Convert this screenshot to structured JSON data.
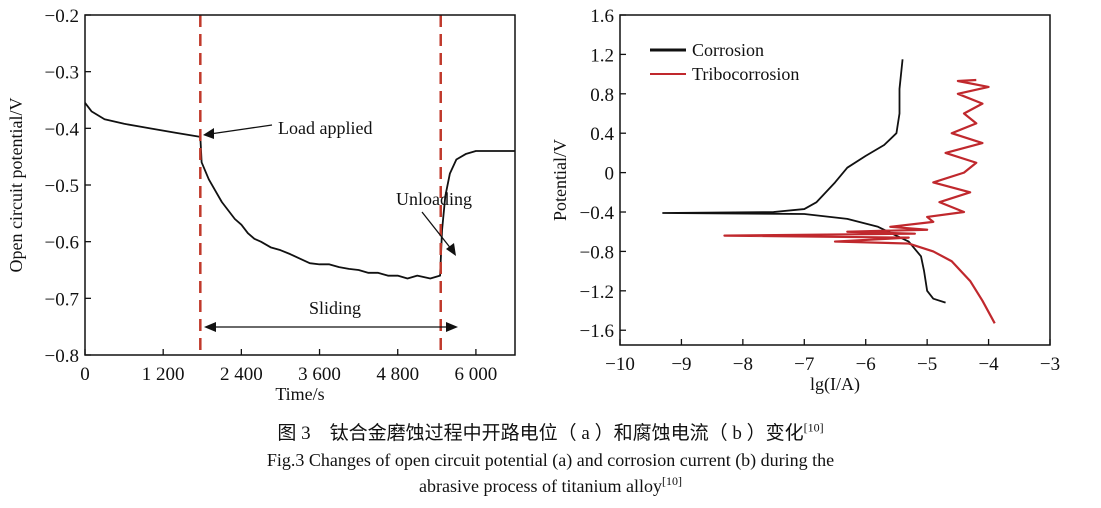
{
  "chart_data": [
    {
      "type": "line",
      "panel": "a",
      "xlabel": "Time/s",
      "ylabel": "Open circuit potential/V",
      "xlim": [
        0,
        6600
      ],
      "ylim": [
        -0.8,
        -0.2
      ],
      "xticks": [
        0,
        1200,
        2400,
        3600,
        4800,
        6000
      ],
      "xtick_labels": [
        "0",
        "1 200",
        "2 400",
        "3 600",
        "4 800",
        "6 000"
      ],
      "yticks": [
        -0.2,
        -0.3,
        -0.4,
        -0.5,
        -0.6,
        -0.7,
        -0.8
      ],
      "ytick_labels": [
        "−0.2",
        "−0.3",
        "−0.4",
        "−0.5",
        "−0.6",
        "−0.7",
        "−0.8"
      ],
      "grid": false,
      "series": [
        {
          "color": "#111111",
          "points": [
            [
              0,
              -0.355
            ],
            [
              100,
              -0.37
            ],
            [
              300,
              -0.384
            ],
            [
              600,
              -0.392
            ],
            [
              1000,
              -0.4
            ],
            [
              1400,
              -0.408
            ],
            [
              1770,
              -0.415
            ],
            [
              1790,
              -0.46
            ],
            [
              1900,
              -0.49
            ],
            [
              2000,
              -0.51
            ],
            [
              2100,
              -0.53
            ],
            [
              2200,
              -0.545
            ],
            [
              2300,
              -0.56
            ],
            [
              2400,
              -0.57
            ],
            [
              2500,
              -0.585
            ],
            [
              2600,
              -0.595
            ],
            [
              2700,
              -0.6
            ],
            [
              2850,
              -0.61
            ],
            [
              3000,
              -0.615
            ],
            [
              3150,
              -0.622
            ],
            [
              3300,
              -0.63
            ],
            [
              3450,
              -0.638
            ],
            [
              3600,
              -0.64
            ],
            [
              3750,
              -0.64
            ],
            [
              3900,
              -0.645
            ],
            [
              4050,
              -0.648
            ],
            [
              4200,
              -0.65
            ],
            [
              4350,
              -0.655
            ],
            [
              4500,
              -0.655
            ],
            [
              4650,
              -0.66
            ],
            [
              4800,
              -0.66
            ],
            [
              4950,
              -0.665
            ],
            [
              5100,
              -0.66
            ],
            [
              5300,
              -0.665
            ],
            [
              5450,
              -0.66
            ],
            [
              5480,
              -0.58
            ],
            [
              5530,
              -0.52
            ],
            [
              5600,
              -0.48
            ],
            [
              5700,
              -0.455
            ],
            [
              5850,
              -0.445
            ],
            [
              6000,
              -0.44
            ],
            [
              6600,
              -0.44
            ]
          ]
        }
      ],
      "vlines": [
        {
          "x": 1770,
          "color": "#c0392b",
          "style": "dashed"
        },
        {
          "x": 5460,
          "color": "#c0392b",
          "style": "dashed"
        }
      ],
      "annotations": {
        "load": "Load applied",
        "unload": "Unloading",
        "sliding": "Sliding"
      }
    },
    {
      "type": "line",
      "panel": "b",
      "xlabel": "lg(I/A)",
      "ylabel": "Potential/V",
      "xlim": [
        -10,
        -3
      ],
      "ylim": [
        -1.75,
        1.6
      ],
      "xticks": [
        -10,
        -9,
        -8,
        -7,
        -6,
        -5,
        -4,
        -3
      ],
      "xtick_labels": [
        "−10",
        "−9",
        "−8",
        "−7",
        "−6",
        "−5",
        "−4",
        "−3"
      ],
      "yticks": [
        1.6,
        1.2,
        0.8,
        0.4,
        0,
        -0.4,
        -0.8,
        -1.2,
        -1.6
      ],
      "ytick_labels": [
        "1.6",
        "1.2",
        "0.8",
        "0.4",
        "0",
        "−0.4",
        "−0.8",
        "−1.2",
        "−1.6"
      ],
      "grid": false,
      "legend": "top-left",
      "series": [
        {
          "name": "Corrosion",
          "color": "#111111",
          "points": [
            [
              -5.4,
              1.15
            ],
            [
              -5.45,
              0.85
            ],
            [
              -5.45,
              0.6
            ],
            [
              -5.5,
              0.4
            ],
            [
              -5.7,
              0.28
            ],
            [
              -6.0,
              0.17
            ],
            [
              -6.3,
              0.05
            ],
            [
              -6.5,
              -0.1
            ],
            [
              -6.8,
              -0.3
            ],
            [
              -7.0,
              -0.37
            ],
            [
              -7.5,
              -0.4
            ],
            [
              -9.3,
              -0.41
            ],
            [
              -7.0,
              -0.42
            ],
            [
              -6.3,
              -0.47
            ],
            [
              -5.8,
              -0.55
            ],
            [
              -5.3,
              -0.7
            ],
            [
              -5.1,
              -0.85
            ],
            [
              -5.05,
              -1.0
            ],
            [
              -5.0,
              -1.2
            ],
            [
              -4.9,
              -1.28
            ],
            [
              -4.7,
              -1.32
            ]
          ]
        },
        {
          "name": "Tribocorrosion",
          "color": "#c0282d",
          "points": [
            [
              -4.2,
              0.94
            ],
            [
              -4.5,
              0.93
            ],
            [
              -4.0,
              0.87
            ],
            [
              -4.5,
              0.8
            ],
            [
              -4.1,
              0.7
            ],
            [
              -4.4,
              0.6
            ],
            [
              -4.2,
              0.5
            ],
            [
              -4.6,
              0.4
            ],
            [
              -4.1,
              0.3
            ],
            [
              -4.7,
              0.2
            ],
            [
              -4.2,
              0.1
            ],
            [
              -4.4,
              0
            ],
            [
              -4.9,
              -0.1
            ],
            [
              -4.3,
              -0.2
            ],
            [
              -4.8,
              -0.3
            ],
            [
              -4.4,
              -0.4
            ],
            [
              -5.0,
              -0.45
            ],
            [
              -4.9,
              -0.5
            ],
            [
              -5.6,
              -0.55
            ],
            [
              -5.0,
              -0.58
            ],
            [
              -6.3,
              -0.6
            ],
            [
              -5.2,
              -0.62
            ],
            [
              -8.3,
              -0.64
            ],
            [
              -5.3,
              -0.66
            ],
            [
              -6.5,
              -0.7
            ],
            [
              -5.3,
              -0.72
            ],
            [
              -4.9,
              -0.8
            ],
            [
              -4.6,
              -0.9
            ],
            [
              -4.3,
              -1.1
            ],
            [
              -4.1,
              -1.3
            ],
            [
              -3.9,
              -1.53
            ]
          ]
        }
      ]
    }
  ],
  "caption": {
    "zh": "图 3　钛合金磨蚀过程中开路电位（ a ）和腐蚀电流（ b ）变化",
    "ref": "[10]",
    "en1": "Fig.3 Changes of open circuit potential (a) and corrosion current (b) during the",
    "en2": "abrasive process of titanium alloy",
    "ref2": "[10]"
  }
}
